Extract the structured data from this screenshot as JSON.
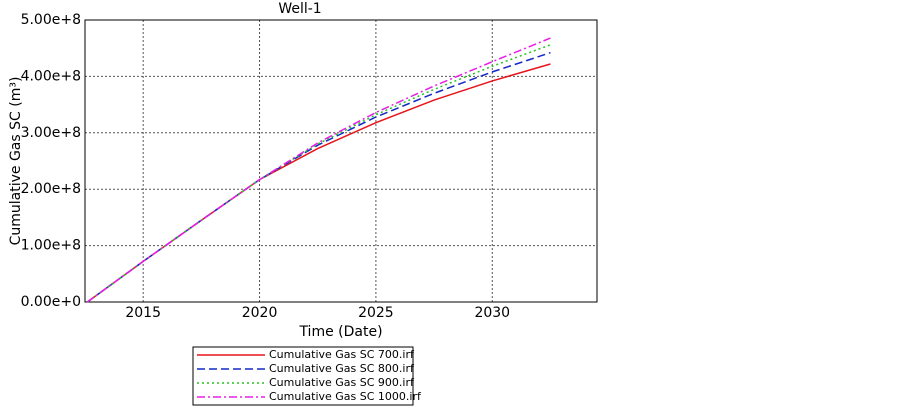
{
  "chart_data": {
    "type": "line",
    "title": "Well-1",
    "x_label": "Time (Date)",
    "y_label": "Cumulative Gas SC (m³)",
    "x": [
      2012.6,
      2015,
      2017.5,
      2020,
      2022.5,
      2025,
      2027.5,
      2030,
      2032.5
    ],
    "series": [
      {
        "name": "Cumulative Gas SC 700.irf",
        "color": "#e8141b",
        "dash": "solid",
        "values": [
          0,
          72000000,
          145000000,
          217000000,
          272000000,
          318000000,
          358000000,
          392000000,
          422000000
        ]
      },
      {
        "name": "Cumulative Gas SC 800.irf",
        "color": "#1428c8",
        "dash": "dashed",
        "values": [
          0,
          72000000,
          145000000,
          217000000,
          278000000,
          328000000,
          370000000,
          408000000,
          442000000
        ]
      },
      {
        "name": "Cumulative Gas SC 900.irf",
        "color": "#22c41e",
        "dash": "dotted",
        "values": [
          0,
          72000000,
          145000000,
          217000000,
          280000000,
          332000000,
          377000000,
          418000000,
          456000000
        ]
      },
      {
        "name": "Cumulative Gas SC 1000.irf",
        "color": "#e81ee8",
        "dash": "dashdot",
        "values": [
          0,
          72000000,
          145000000,
          217000000,
          282000000,
          336000000,
          383000000,
          426000000,
          468000000
        ]
      }
    ],
    "xlim": [
      2012.5,
      2034.5
    ],
    "xticks": [
      2015,
      2020,
      2025,
      2030
    ],
    "ylim": [
      0,
      500000000
    ],
    "yticks": [
      {
        "value": 0,
        "label": "0.00e+0"
      },
      {
        "value": 100000000,
        "label": "1.00e+8"
      },
      {
        "value": 200000000,
        "label": "2.00e+8"
      },
      {
        "value": 300000000,
        "label": "3.00e+8"
      },
      {
        "value": 400000000,
        "label": "4.00e+8"
      },
      {
        "value": 500000000,
        "label": "5.00e+8"
      }
    ],
    "grid": true,
    "legend": "bottom"
  }
}
